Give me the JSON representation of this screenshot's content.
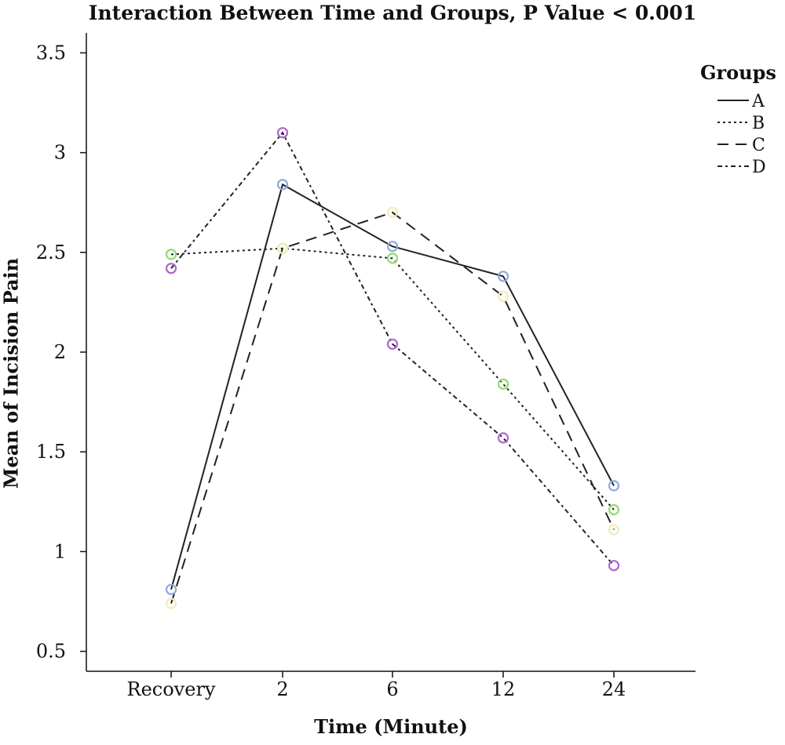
{
  "chart_data": {
    "type": "line",
    "title": "Interaction Between Time and Groups, P Value < 0.001",
    "xlabel": "Time (Minute)",
    "ylabel": "Mean of Incision Pain",
    "categories": [
      "Recovery",
      "2",
      "6",
      "12",
      "24"
    ],
    "ylim": [
      0.4,
      3.6
    ],
    "yticks": [
      0.5,
      1,
      1.5,
      2,
      2.5,
      3,
      3.5
    ],
    "ytick_labels": [
      "0.5",
      "1",
      "1.5",
      "2",
      "2.5",
      "3",
      "3.5"
    ],
    "grid": false,
    "legend": {
      "title": "Groups",
      "placement": "top-right"
    },
    "series": [
      {
        "name": "A",
        "values": [
          0.81,
          2.84,
          2.53,
          2.38,
          1.33
        ],
        "line_style": "solid",
        "marker_color": "#8fa8e0"
      },
      {
        "name": "B",
        "values": [
          2.49,
          2.52,
          2.47,
          1.84,
          1.21
        ],
        "line_style": "dotted",
        "marker_color": "#8fdc70"
      },
      {
        "name": "C",
        "values": [
          0.74,
          2.52,
          2.7,
          2.28,
          1.11
        ],
        "line_style": "dashed",
        "marker_color": "#eeeeb0"
      },
      {
        "name": "D",
        "values": [
          2.42,
          3.1,
          2.04,
          1.57,
          0.93
        ],
        "line_style": "dash-dot",
        "marker_color": "#b463d4"
      }
    ]
  }
}
